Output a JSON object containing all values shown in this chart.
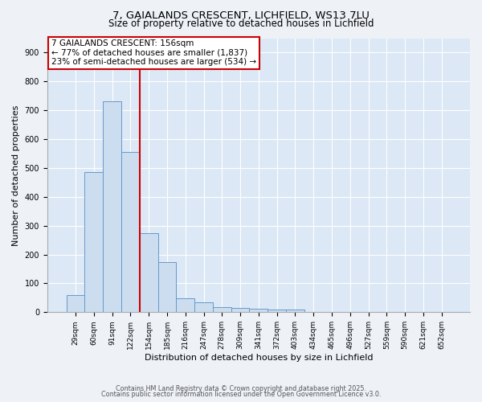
{
  "title_line1": "7, GAIALANDS CRESCENT, LICHFIELD, WS13 7LU",
  "title_line2": "Size of property relative to detached houses in Lichfield",
  "xlabel": "Distribution of detached houses by size in Lichfield",
  "ylabel": "Number of detached properties",
  "bar_color": "#ccddef",
  "bar_edge_color": "#6699cc",
  "bar_edge_width": 0.7,
  "vline_color": "#cc0000",
  "categories": [
    "29sqm",
    "60sqm",
    "91sqm",
    "122sqm",
    "154sqm",
    "185sqm",
    "216sqm",
    "247sqm",
    "278sqm",
    "309sqm",
    "341sqm",
    "372sqm",
    "403sqm",
    "434sqm",
    "465sqm",
    "496sqm",
    "527sqm",
    "559sqm",
    "590sqm",
    "621sqm",
    "652sqm"
  ],
  "values": [
    60,
    485,
    730,
    555,
    275,
    175,
    48,
    35,
    18,
    15,
    12,
    8,
    8,
    0,
    0,
    0,
    0,
    0,
    0,
    0,
    0
  ],
  "ylim": [
    0,
    950
  ],
  "yticks": [
    0,
    100,
    200,
    300,
    400,
    500,
    600,
    700,
    800,
    900
  ],
  "annotation_line1": "7 GAIALANDS CRESCENT: 156sqm",
  "annotation_line2": "← 77% of detached houses are smaller (1,837)",
  "annotation_line3": "23% of semi-detached houses are larger (534) →",
  "background_color": "#eef2f7",
  "plot_bg_color": "#dce8f5",
  "footer_text1": "Contains HM Land Registry data © Crown copyright and database right 2025.",
  "footer_text2": "Contains public sector information licensed under the Open Government Licence v3.0.",
  "title_fontsize": 9.5,
  "subtitle_fontsize": 8.5,
  "axis_label_fontsize": 8,
  "tick_fontsize": 6.5,
  "annotation_fontsize": 7.5,
  "grid_color": "#ffffff",
  "grid_linewidth": 0.8,
  "vline_bar_index": 3
}
